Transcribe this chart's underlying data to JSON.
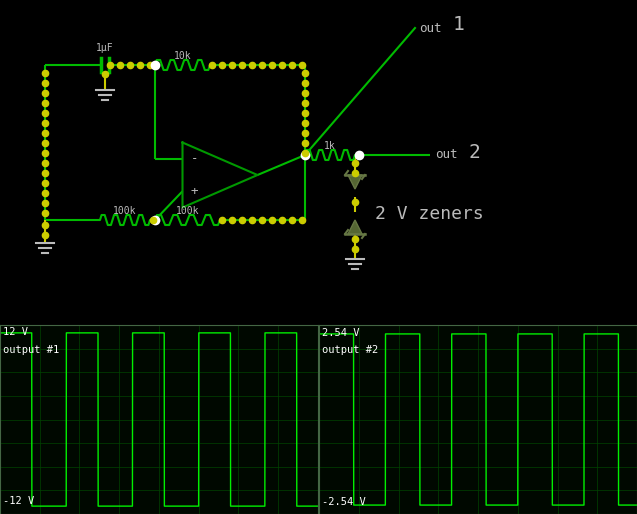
{
  "bg_color": "#000000",
  "wire_color": "#00bb00",
  "dot_color": "#cccc00",
  "resistor_color": "#00bb00",
  "opamp_color": "#009900",
  "scope_line_color": "#00ee00",
  "scope_grid_color": "#004400",
  "scope_border_color": "#446644",
  "scope_bg": "#000800",
  "text_color": "#bbbbbb",
  "zener_color": "#556633",
  "zener_edge": "#667744",
  "ground_color": "#bbbbbb",
  "cap_color": "#bbbbbb",
  "scope1_top": "12 V",
  "scope1_label": "output #1",
  "scope1_bot": "-12 V",
  "scope2_top": "2.54 V",
  "scope2_label": "output #2",
  "scope2_bot": "-2.54 V",
  "label_1uF": "1µF",
  "label_10k": "10k",
  "label_1k": "1k",
  "label_100k_left": "100k",
  "label_100k_right": "100k",
  "label_zener": "2 V zeners",
  "label_out1": "out",
  "label_out1_num": "1",
  "label_out2": "out",
  "label_out2_num": "2"
}
